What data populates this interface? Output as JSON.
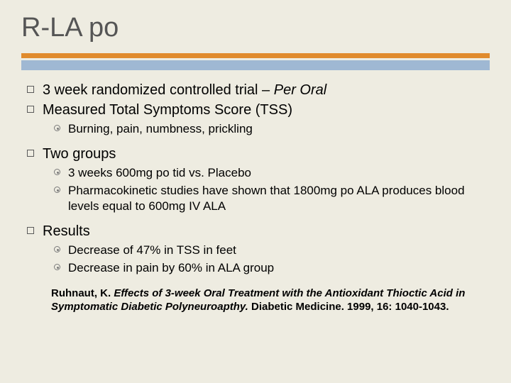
{
  "title": "R-LA po",
  "colors": {
    "background": "#eeece1",
    "orange_bar": "#e08b2d",
    "blue_bar": "#9fb8d3",
    "title_color": "#555555"
  },
  "bullets": {
    "b1_text_a": "3 week randomized controlled trial – ",
    "b1_text_b": "Per Oral",
    "b2": "Measured Total Symptoms Score (TSS)",
    "b2_sub1": "Burning, pain, numbness, prickling",
    "b3": "Two groups",
    "b3_sub1": "3 weeks 600mg po tid vs. Placebo",
    "b3_sub2": "Pharmacokinetic studies have shown that 1800mg po ALA produces blood levels equal to 600mg IV ALA",
    "b4": "Results",
    "b4_sub1": "Decrease of 47% in TSS in feet",
    "b4_sub2": "Decrease in pain by 60% in ALA group"
  },
  "citation": {
    "author": "Ruhnaut, K. ",
    "title_ital": "Effects of 3-week Oral Treatment with the Antioxidant Thioctic Acid in Symptomatic Diabetic Polyneuroapthy.",
    "rest": " Diabetic Medicine. 1999, 16: 1040-1043."
  }
}
